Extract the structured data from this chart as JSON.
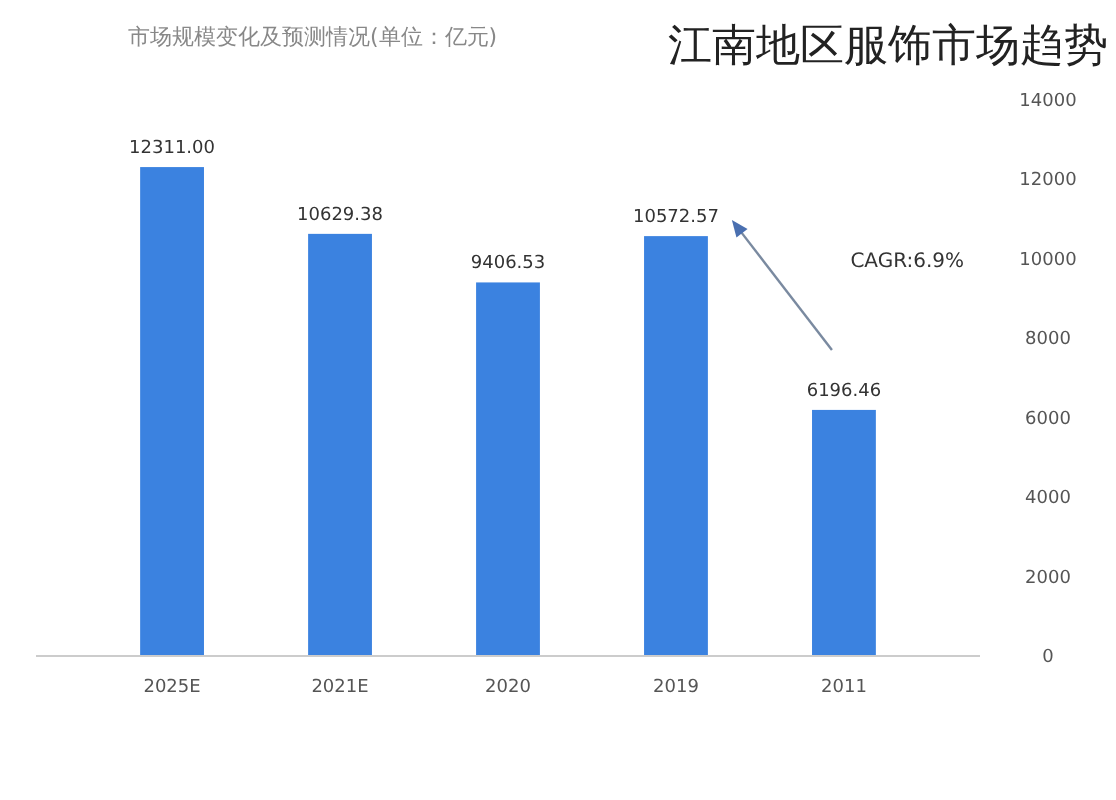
{
  "chart_data": {
    "type": "bar",
    "title": "江南地区服饰市场趋势",
    "subtitle": "市场规模变化及预测情况(单位：亿元)",
    "categories": [
      "2025E",
      "2021E",
      "2020",
      "2019",
      "2011"
    ],
    "values": [
      12311.0,
      10629.38,
      9406.53,
      10572.57,
      6196.46
    ],
    "value_labels": [
      "12311.00",
      "10629.38",
      "9406.53",
      "10572.57",
      "6196.46"
    ],
    "color": "#3b82e0",
    "ylim": [
      0,
      14000
    ],
    "yticks": [
      0,
      2000,
      4000,
      6000,
      8000,
      10000,
      12000,
      14000
    ],
    "grid": false,
    "annotations": [
      {
        "text": "CAGR:6.9%"
      }
    ]
  }
}
